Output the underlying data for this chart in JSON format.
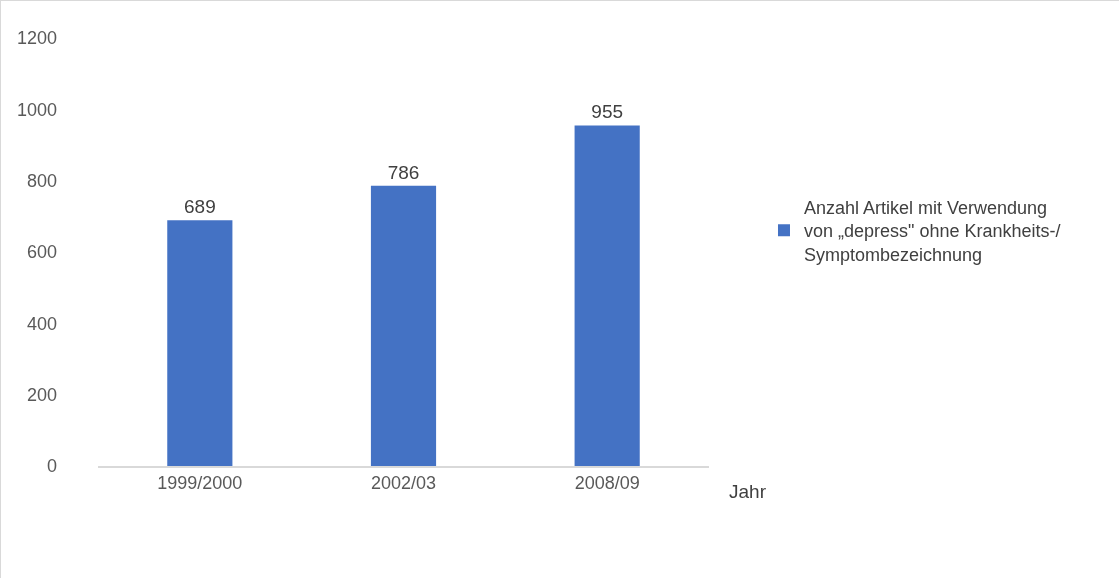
{
  "chart_data": {
    "type": "bar",
    "xlabel": "Jahr",
    "categories": [
      "1999/2000",
      "2002/03",
      "2008/09"
    ],
    "series": [
      {
        "name": "Anzahl Artikel mit Verwendung von „depress\" ohne Krankheits-/ Symptombezeichnung",
        "color": "#4472c4",
        "values": [
          689,
          786,
          955
        ]
      }
    ],
    "ylim": [
      0,
      1200
    ],
    "yticks": [
      0,
      200,
      400,
      600,
      800,
      1000,
      1200
    ],
    "grid": false,
    "legend": "right",
    "data_labels": true
  }
}
